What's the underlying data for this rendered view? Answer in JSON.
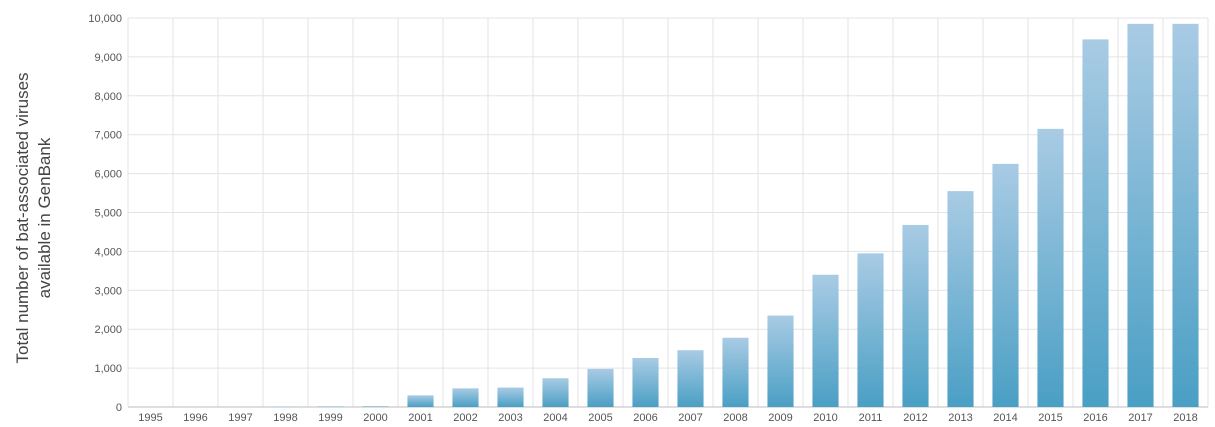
{
  "chart_data": {
    "type": "bar",
    "title": "",
    "xlabel": "",
    "ylabel": "Total number of bat-associated viruses available in GenBank",
    "ylabel_lines": [
      "Total number of bat-associated viruses",
      "available in GenBank"
    ],
    "categories": [
      "1995",
      "1996",
      "1997",
      "1998",
      "1999",
      "2000",
      "2001",
      "2002",
      "2003",
      "2004",
      "2005",
      "2006",
      "2007",
      "2008",
      "2009",
      "2010",
      "2011",
      "2012",
      "2013",
      "2014",
      "2015",
      "2016",
      "2017",
      "2018"
    ],
    "values": [
      0,
      0,
      5,
      10,
      15,
      20,
      300,
      480,
      500,
      740,
      980,
      1260,
      1460,
      1780,
      2350,
      3400,
      3950,
      4680,
      5550,
      6250,
      7150,
      9450,
      9850,
      9850
    ],
    "ylim": [
      0,
      10000
    ],
    "yticks": [
      0,
      1000,
      2000,
      3000,
      4000,
      5000,
      6000,
      7000,
      8000,
      9000,
      10000
    ],
    "ytick_labels": [
      "0",
      "1,000",
      "2,000",
      "3,000",
      "4,000",
      "5,000",
      "6,000",
      "7,000",
      "8,000",
      "9,000",
      "10,000"
    ],
    "grid": true,
    "legend": "none",
    "colors": {
      "bar_top": "#a9cbe4",
      "bar_bottom": "#4a9fc4",
      "grid": "#e3e3e3",
      "text": "#555555"
    }
  }
}
